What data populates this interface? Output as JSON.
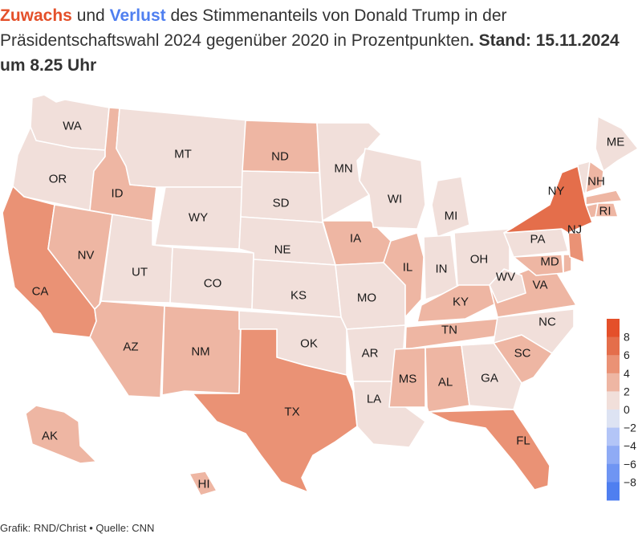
{
  "headline": {
    "gain_word": "Zuwachs",
    "and_word": "und",
    "loss_word": "Verlust",
    "rest": "des Stimmenanteils von Donald Trump in der Präsidentschaftswahl 2024 gegenüber 2020 in Prozentpunkten",
    "stand": ". Stand: 15.11.2024 um 8.25 Uhr"
  },
  "colors": {
    "gain": "#e4502a",
    "loss": "#4f7ff0",
    "neutral": "#dde3f3",
    "scale": [
      "#4f7ff0",
      "#6f95f3",
      "#8fabf5",
      "#b3c5f7",
      "#dde3f3",
      "#f1dfda",
      "#eeb6a3",
      "#ea9275",
      "#e46e4b",
      "#e4502a"
    ]
  },
  "legend": {
    "ticks": [
      "8",
      "6",
      "4",
      "2",
      "0",
      "−2",
      "−4",
      "−6",
      "−8"
    ]
  },
  "states": [
    {
      "code": "WA",
      "value": 1.5
    },
    {
      "code": "OR",
      "value": 1.5
    },
    {
      "code": "CA",
      "value": 4.5
    },
    {
      "code": "NV",
      "value": 3.5
    },
    {
      "code": "ID",
      "value": 3.5
    },
    {
      "code": "MT",
      "value": 1.5
    },
    {
      "code": "WY",
      "value": 1.5
    },
    {
      "code": "UT",
      "value": 1.5
    },
    {
      "code": "CO",
      "value": 1.5
    },
    {
      "code": "AZ",
      "value": 3.5
    },
    {
      "code": "NM",
      "value": 3.5
    },
    {
      "code": "ND",
      "value": 3.5
    },
    {
      "code": "SD",
      "value": 1.5
    },
    {
      "code": "NE",
      "value": 1.5
    },
    {
      "code": "KS",
      "value": 1.5
    },
    {
      "code": "OK",
      "value": 1.5
    },
    {
      "code": "TX",
      "value": 5.5
    },
    {
      "code": "MN",
      "value": 1.5
    },
    {
      "code": "IA",
      "value": 3.5
    },
    {
      "code": "MO",
      "value": 1.5
    },
    {
      "code": "AR",
      "value": 1.5
    },
    {
      "code": "LA",
      "value": 1.5
    },
    {
      "code": "WI",
      "value": 1.5
    },
    {
      "code": "IL",
      "value": 3.5
    },
    {
      "code": "MI",
      "value": 1.5
    },
    {
      "code": "IN",
      "value": 1.5
    },
    {
      "code": "OH",
      "value": 1.5
    },
    {
      "code": "KY",
      "value": 3.5
    },
    {
      "code": "TN",
      "value": 3.5
    },
    {
      "code": "MS",
      "value": 3.5
    },
    {
      "code": "AL",
      "value": 3.5
    },
    {
      "code": "GA",
      "value": 1.5
    },
    {
      "code": "FL",
      "value": 5.5
    },
    {
      "code": "SC",
      "value": 3.5
    },
    {
      "code": "NC",
      "value": 1.5
    },
    {
      "code": "VA",
      "value": 3.5
    },
    {
      "code": "WV",
      "value": 1.5
    },
    {
      "code": "MD",
      "value": 3.5
    },
    {
      "code": "PA",
      "value": 1.5
    },
    {
      "code": "NY",
      "value": 6.5
    },
    {
      "code": "NJ",
      "value": 5.5
    },
    {
      "code": "ME",
      "value": 1.5
    },
    {
      "code": "NH",
      "value": 3.5
    },
    {
      "code": "RI",
      "value": 3.5
    },
    {
      "code": "AK",
      "value": 3.5
    },
    {
      "code": "HI",
      "value": 3.5
    }
  ],
  "footer": {
    "text": "Grafik: RND/Christ • Quelle: CNN"
  }
}
